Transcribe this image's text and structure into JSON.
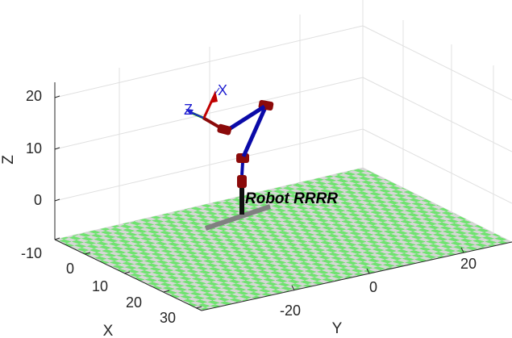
{
  "axes": {
    "x_label": "X",
    "y_label": "Y",
    "z_label": "Z",
    "x_ticks": [
      "0",
      "10",
      "20",
      "30"
    ],
    "y_ticks": [
      "-20",
      "0",
      "20"
    ],
    "z_ticks": [
      "-10",
      "0",
      "10",
      "20"
    ],
    "grid": true,
    "box": true
  },
  "robot": {
    "name": "Robot RRRR",
    "link_color": "#0a0aa8",
    "joint_color": "#8b0a0a",
    "base_color": "#111111",
    "shadow_color": "#808080"
  },
  "floor": {
    "pattern": "checkerboard",
    "color_a": "#6fe36f",
    "color_b": "#d6d6d6"
  },
  "tool_frame": {
    "x_label": "X",
    "z_label": "Z",
    "x_axis_color": "#c00000",
    "y_axis_color": "#00a000",
    "z_axis_color": "#1f1fd0",
    "label_color": "#1f1fd0"
  }
}
